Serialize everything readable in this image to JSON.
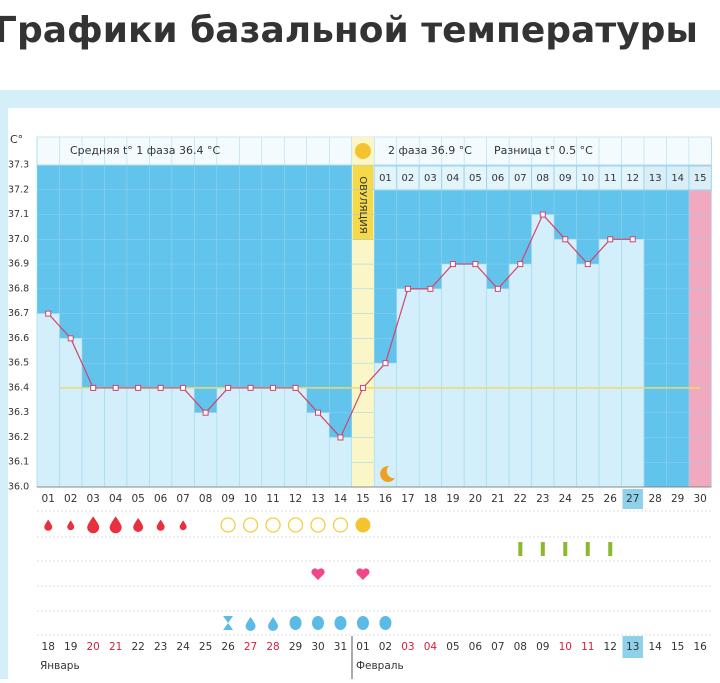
{
  "page_title": "Графики базальной температуры",
  "chart_data": {
    "type": "line",
    "y_label": "C°",
    "annotations": [
      "Средняя t° 1 фаза 36.4 °C",
      "2 фаза 36.9 °C",
      "Разница t° 0.5 °C",
      "ОВУЛЯЦИЯ"
    ],
    "categories": [
      "01",
      "02",
      "03",
      "04",
      "05",
      "06",
      "07",
      "08",
      "09",
      "10",
      "11",
      "12",
      "13",
      "14",
      "15",
      "16",
      "17",
      "18",
      "19",
      "20",
      "21",
      "22",
      "23",
      "24",
      "25",
      "26",
      "27",
      "28",
      "29",
      "30"
    ],
    "phase2_days": [
      "01",
      "02",
      "03",
      "04",
      "05",
      "06",
      "07",
      "08",
      "09",
      "10",
      "11",
      "12",
      "13",
      "14",
      "15"
    ],
    "dates": [
      "18",
      "19",
      "20",
      "21",
      "22",
      "23",
      "24",
      "25",
      "26",
      "27",
      "28",
      "29",
      "30",
      "31",
      "01",
      "02",
      "03",
      "04",
      "05",
      "06",
      "07",
      "08",
      "09",
      "10",
      "11",
      "12",
      "13",
      "14",
      "15",
      "16"
    ],
    "months": [
      "Январь",
      "Февраль"
    ],
    "series": [
      {
        "name": "t°",
        "color": "#d2446a",
        "values": [
          36.7,
          36.6,
          36.4,
          36.4,
          36.4,
          36.4,
          36.4,
          36.3,
          36.4,
          36.4,
          36.4,
          36.4,
          36.3,
          36.2,
          36.4,
          36.5,
          36.8,
          36.8,
          36.9,
          36.9,
          36.8,
          36.9,
          37.1,
          37.0,
          36.9,
          37.0,
          37.0,
          null,
          null,
          null
        ]
      }
    ],
    "coverline": 36.4,
    "ylim": [
      36.0,
      37.3
    ],
    "yticks": [
      {
        "value": 36.0,
        "label": "36.0"
      },
      36.1,
      36.2,
      36.3,
      36.4,
      36.5,
      36.6,
      36.7,
      36.8,
      36.9,
      {
        "value": 37.0,
        "label": "37.0"
      },
      37.1,
      37.2,
      37.3
    ],
    "grid": true
  }
}
